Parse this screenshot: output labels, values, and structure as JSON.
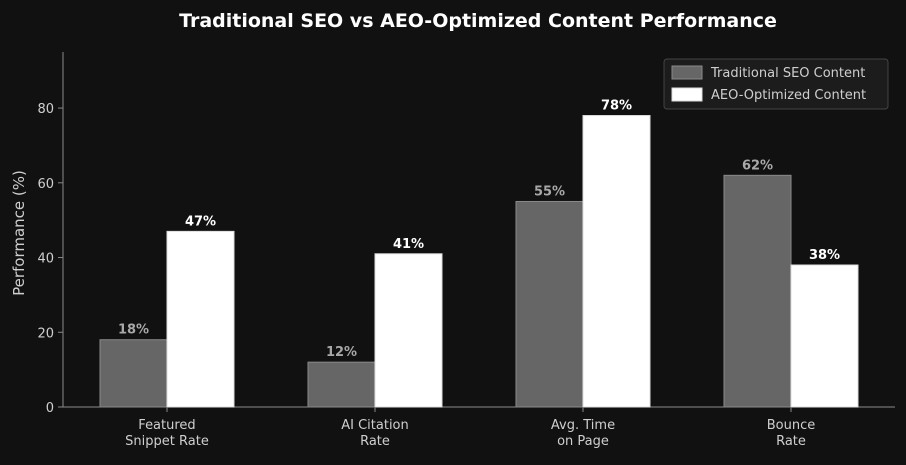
{
  "chart_data": {
    "type": "bar",
    "title": "Traditional SEO vs AEO-Optimized Content Performance",
    "xlabel": "",
    "ylabel": "Performance (%)",
    "ylim": [
      0,
      95
    ],
    "yticks": [
      0,
      20,
      40,
      60,
      80
    ],
    "categories": [
      [
        "Featured",
        "Snippet Rate"
      ],
      [
        "AI Citation",
        "Rate"
      ],
      [
        "Avg. Time",
        "on Page"
      ],
      [
        "Bounce",
        "Rate"
      ]
    ],
    "series": [
      {
        "name": "Traditional SEO Content",
        "values": [
          18,
          12,
          55,
          62
        ],
        "labels": [
          "18%",
          "12%",
          "55%",
          "62%"
        ],
        "color": "#666666",
        "label_color": "#a8a8a8"
      },
      {
        "name": "AEO-Optimized Content",
        "values": [
          47,
          41,
          78,
          38
        ],
        "labels": [
          "47%",
          "41%",
          "78%",
          "38%"
        ],
        "color": "#ffffff",
        "label_color": "#ffffff"
      }
    ],
    "legend_position": "top-right",
    "grid": false,
    "colors": {
      "background": "#111111",
      "axis": "#8a8a8a",
      "text": "#cfcfcf",
      "title": "#ffffff"
    }
  }
}
